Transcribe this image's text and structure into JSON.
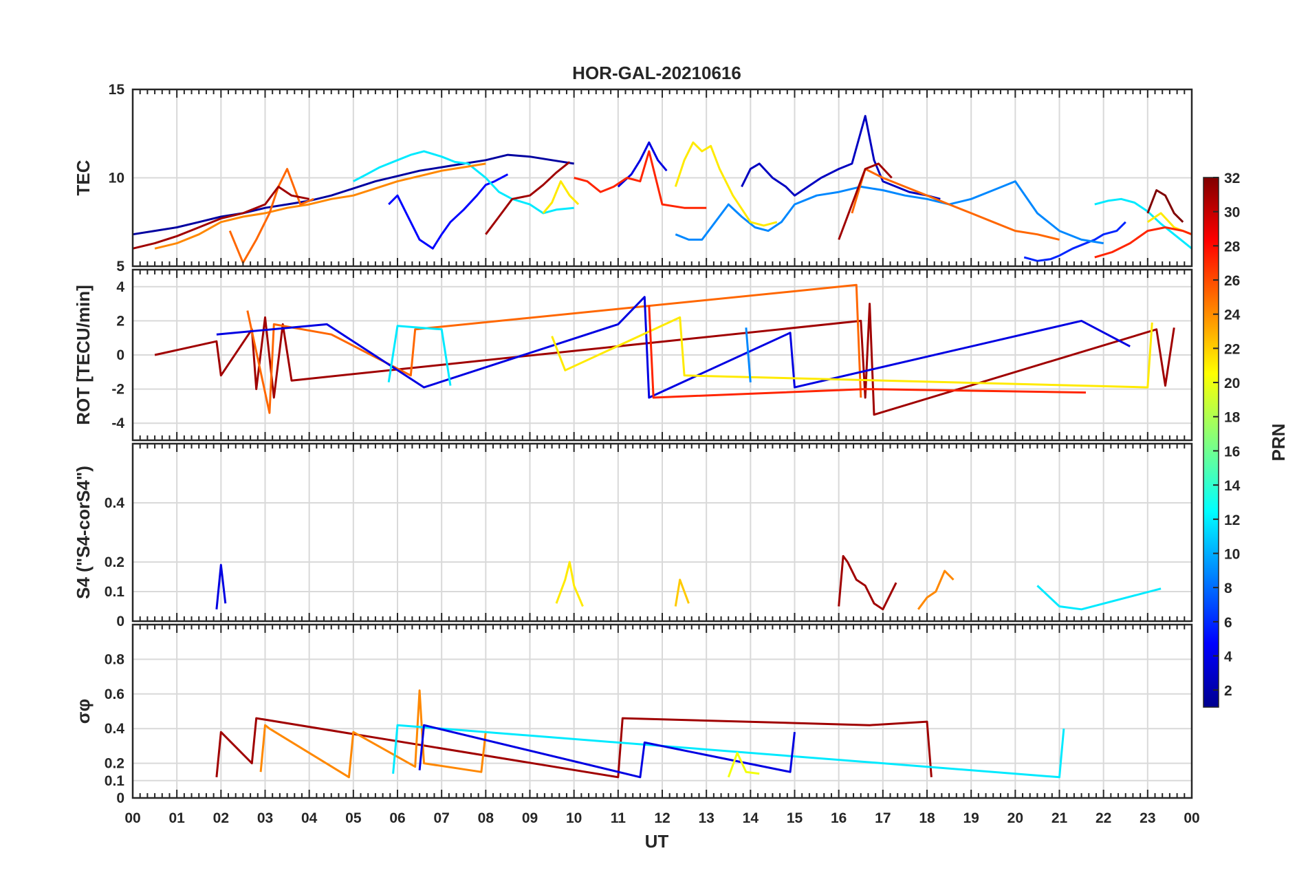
{
  "chart_data": {
    "type": "line",
    "title": "HOR-GAL-20210616",
    "xlabel": "UT",
    "x_ticks": [
      "00",
      "01",
      "02",
      "03",
      "04",
      "05",
      "06",
      "07",
      "08",
      "09",
      "10",
      "11",
      "12",
      "13",
      "14",
      "15",
      "16",
      "17",
      "18",
      "19",
      "20",
      "21",
      "22",
      "23",
      "00"
    ],
    "xlim": [
      0,
      24
    ],
    "colorbar": {
      "label": "PRN",
      "range": [
        1,
        32
      ],
      "ticks": [
        "32",
        "30",
        "28",
        "26",
        "24",
        "22",
        "20",
        "18",
        "16",
        "14",
        "12",
        "10",
        "8",
        "6",
        "4",
        "2"
      ],
      "colormap": "jet"
    },
    "panels": [
      {
        "ylabel": "TEC",
        "ylim": [
          5,
          15
        ],
        "y_ticks": [
          "15",
          "10",
          "5"
        ],
        "series": [
          {
            "name": "PRN 2",
            "prn": 2,
            "x": [
              0,
              0.5,
              1,
              1.5,
              2,
              2.5,
              3,
              3.5,
              4,
              4.5,
              5,
              5.5,
              6,
              6.5,
              7,
              7.5,
              8,
              8.5,
              9,
              9.5,
              10
            ],
            "y": [
              6.8,
              7.0,
              7.2,
              7.5,
              7.8,
              8.0,
              8.3,
              8.5,
              8.7,
              9.0,
              9.4,
              9.8,
              10.1,
              10.4,
              10.6,
              10.8,
              11.0,
              11.3,
              11.2,
              11.0,
              10.8
            ]
          },
          {
            "name": "PRN 4",
            "prn": 4,
            "x": [
              11,
              11.3,
              11.5,
              11.7,
              11.9,
              12.1
            ],
            "y": [
              9.5,
              10.2,
              11.0,
              12.0,
              11.0,
              10.4
            ]
          },
          {
            "name": "PRN 3",
            "prn": 3,
            "x": [
              13.8,
              14,
              14.2,
              14.5,
              14.8,
              15,
              15.3,
              15.6,
              16,
              16.3,
              16.6,
              16.8,
              17,
              17.3,
              17.6,
              18,
              18.3
            ],
            "y": [
              9.5,
              10.5,
              10.8,
              10.0,
              9.5,
              9.0,
              9.5,
              10.0,
              10.5,
              10.8,
              13.5,
              11.0,
              9.8,
              9.5,
              9.2,
              9.0,
              8.8
            ]
          },
          {
            "name": "PRN 5",
            "prn": 5,
            "x": [
              5.8,
              6,
              6.2,
              6.5,
              6.8,
              7,
              7.2,
              7.5,
              7.8,
              8,
              8.2,
              8.5
            ],
            "y": [
              8.5,
              9.0,
              8.0,
              6.5,
              6.0,
              6.8,
              7.5,
              8.2,
              9.0,
              9.6,
              9.8,
              10.2
            ]
          },
          {
            "name": "PRN 6",
            "prn": 6,
            "x": [
              20.2,
              20.5,
              20.8,
              21,
              21.3,
              21.5,
              21.8,
              22,
              22.3,
              22.5
            ],
            "y": [
              5.5,
              5.3,
              5.4,
              5.6,
              6.0,
              6.2,
              6.5,
              6.8,
              7.0,
              7.5
            ]
          },
          {
            "name": "PRN 9",
            "prn": 9,
            "x": [
              12.3,
              12.6,
              12.9,
              13.2,
              13.5,
              13.8,
              14.1,
              14.4,
              14.7,
              15,
              15.5,
              16,
              16.5,
              17,
              17.5,
              18,
              18.5,
              19,
              19.5,
              20,
              20.5,
              21,
              21.5,
              22
            ],
            "y": [
              6.8,
              6.5,
              6.5,
              7.5,
              8.5,
              7.8,
              7.2,
              7.0,
              7.5,
              8.5,
              9.0,
              9.2,
              9.5,
              9.3,
              9.0,
              8.8,
              8.5,
              8.8,
              9.3,
              9.8,
              8.0,
              7.0,
              6.5,
              6.3
            ]
          },
          {
            "name": "PRN 12",
            "prn": 12,
            "x": [
              5,
              5.3,
              5.6,
              6,
              6.3,
              6.6,
              7,
              7.3,
              7.6,
              8,
              8.3,
              8.6,
              9,
              9.3,
              9.6,
              10
            ],
            "y": [
              9.8,
              10.2,
              10.6,
              11.0,
              11.3,
              11.5,
              11.2,
              10.9,
              10.8,
              10.0,
              9.2,
              8.8,
              8.5,
              8.0,
              8.2,
              8.3
            ]
          },
          {
            "name": "PRN 12b",
            "prn": 12,
            "x": [
              21.8,
              22.1,
              22.4,
              22.7,
              23,
              23.3,
              23.6,
              24
            ],
            "y": [
              8.5,
              8.7,
              8.8,
              8.6,
              8.1,
              7.4,
              6.8,
              6.0
            ]
          },
          {
            "name": "PRN 21",
            "prn": 21,
            "x": [
              9.3,
              9.5,
              9.7,
              9.9,
              10.1
            ],
            "y": [
              8.0,
              8.6,
              9.8,
              9.0,
              8.5
            ]
          },
          {
            "name": "PRN 21b",
            "prn": 21,
            "x": [
              12.3,
              12.5,
              12.7,
              12.9,
              13.1,
              13.3,
              13.6,
              14,
              14.3,
              14.6
            ],
            "y": [
              9.5,
              11.0,
              12.0,
              11.5,
              11.8,
              10.5,
              9.0,
              7.5,
              7.3,
              7.5
            ]
          },
          {
            "name": "PRN 21c",
            "prn": 21,
            "x": [
              23,
              23.3,
              23.6,
              24
            ],
            "y": [
              7.5,
              8.0,
              7.2,
              6.8
            ]
          },
          {
            "name": "PRN 24",
            "prn": 24,
            "x": [
              0.5,
              1,
              1.5,
              2,
              2.5,
              3,
              3.5,
              4,
              4.5,
              5,
              5.5,
              6,
              6.5,
              7,
              7.5,
              8
            ],
            "y": [
              6.0,
              6.3,
              6.8,
              7.5,
              7.8,
              8.0,
              8.3,
              8.5,
              8.8,
              9.0,
              9.4,
              9.8,
              10.1,
              10.4,
              10.6,
              10.8
            ]
          },
          {
            "name": "PRN 25",
            "prn": 25,
            "x": [
              2.2,
              2.5,
              2.8,
              3.1,
              3.3,
              3.5,
              3.8,
              4.1
            ],
            "y": [
              7.0,
              5.2,
              6.5,
              8.0,
              9.5,
              10.5,
              8.5,
              8.8
            ]
          },
          {
            "name": "PRN 25b",
            "prn": 25,
            "x": [
              16.3,
              16.6,
              17,
              17.5,
              18,
              18.5,
              19,
              19.5,
              20,
              20.5,
              21
            ],
            "y": [
              8.0,
              10.5,
              10.0,
              9.5,
              9.0,
              8.5,
              8.0,
              7.5,
              7.0,
              6.8,
              6.5
            ]
          },
          {
            "name": "PRN 27",
            "prn": 27,
            "x": [
              10,
              10.3,
              10.6,
              10.9,
              11.2,
              11.5,
              11.7,
              12,
              12.5,
              13
            ],
            "y": [
              10.0,
              9.8,
              9.2,
              9.5,
              10.0,
              9.8,
              11.5,
              8.5,
              8.3,
              8.3
            ]
          },
          {
            "name": "PRN 27b",
            "prn": 27,
            "x": [
              21.8,
              22.2,
              22.6,
              23,
              23.4,
              23.8,
              24
            ],
            "y": [
              5.5,
              5.8,
              6.3,
              7.0,
              7.2,
              7.0,
              6.8
            ]
          },
          {
            "name": "PRN 31",
            "prn": 31,
            "x": [
              0,
              0.5,
              1,
              1.5,
              2,
              2.5,
              3,
              3.3,
              3.6,
              4
            ],
            "y": [
              6.0,
              6.3,
              6.7,
              7.2,
              7.7,
              8.0,
              8.5,
              9.5,
              9.0,
              8.8
            ]
          },
          {
            "name": "PRN 31b",
            "prn": 31,
            "x": [
              8,
              8.3,
              8.6,
              9,
              9.3,
              9.6,
              9.9
            ],
            "y": [
              6.8,
              7.8,
              8.8,
              9.0,
              9.6,
              10.3,
              10.9
            ]
          },
          {
            "name": "PRN 31c",
            "prn": 31,
            "x": [
              16,
              16.3,
              16.6,
              16.9,
              17.2
            ],
            "y": [
              6.5,
              8.5,
              10.5,
              10.8,
              10.0
            ]
          },
          {
            "name": "PRN 32",
            "prn": 32,
            "x": [
              23,
              23.2,
              23.4,
              23.6,
              23.8
            ],
            "y": [
              8.0,
              9.3,
              9.0,
              8.0,
              7.5
            ]
          }
        ]
      },
      {
        "ylabel": "ROT [TECU/min]",
        "ylim": [
          -5,
          5
        ],
        "y_ticks": [
          "4",
          "2",
          "0",
          "-2",
          "-4"
        ],
        "series": [
          {
            "name": "PRN 31",
            "prn": 31,
            "x": [
              0.5,
              1.9,
              2.0,
              2.7,
              2.8,
              3.0,
              3.2,
              3.4,
              3.6,
              16.5,
              16.6,
              16.7,
              16.8,
              23.2,
              23.4,
              23.6
            ],
            "y": [
              0,
              0.8,
              -1.2,
              1.5,
              -2.0,
              2.2,
              -2.5,
              1.8,
              -1.5,
              2.0,
              -2.5,
              3.0,
              -3.5,
              1.5,
              -1.8,
              1.6
            ]
          },
          {
            "name": "PRN 25",
            "prn": 25,
            "x": [
              2.6,
              3.1,
              3.2,
              4.5,
              6.3,
              6.4,
              16.4,
              16.5
            ],
            "y": [
              2.6,
              -3.4,
              1.8,
              1.2,
              -1.2,
              1.5,
              4.1,
              -2.5
            ]
          },
          {
            "name": "PRN 4",
            "prn": 4,
            "x": [
              1.9,
              4.4,
              6.6,
              11.0,
              11.6,
              11.7,
              14.9,
              15.0,
              21.5,
              22.6
            ],
            "y": [
              1.2,
              1.8,
              -1.9,
              1.8,
              3.4,
              -2.5,
              1.3,
              -1.9,
              2.0,
              0.5
            ]
          },
          {
            "name": "PRN 12",
            "prn": 12,
            "x": [
              5.8,
              6.0,
              7.0,
              7.2
            ],
            "y": [
              -1.6,
              1.7,
              1.5,
              -1.8
            ]
          },
          {
            "name": "PRN 21",
            "prn": 21,
            "x": [
              9.5,
              9.8,
              12.4,
              12.5,
              23.0,
              23.1
            ],
            "y": [
              1.1,
              -0.9,
              2.2,
              -1.2,
              -1.9,
              1.9
            ]
          },
          {
            "name": "PRN 27",
            "prn": 27,
            "x": [
              11.7,
              11.8,
              16.6,
              21.6
            ],
            "y": [
              2.9,
              -2.5,
              -2.0,
              -2.2
            ]
          },
          {
            "name": "PRN 9",
            "prn": 9,
            "x": [
              13.9,
              14.0
            ],
            "y": [
              1.6,
              -1.6
            ]
          }
        ]
      },
      {
        "ylabel": "S4 (\"S4-corS4\")",
        "ylim": [
          0,
          0.6
        ],
        "y_ticks": [
          "0.4",
          "0.2",
          "0.1",
          "0"
        ],
        "series": [
          {
            "name": "PRN 4",
            "prn": 4,
            "x": [
              1.9,
              2.0,
              2.1
            ],
            "y": [
              0.04,
              0.19,
              0.06
            ]
          },
          {
            "name": "PRN 21",
            "prn": 21,
            "x": [
              9.6,
              9.8,
              9.9,
              10.0,
              10.2
            ],
            "y": [
              0.06,
              0.14,
              0.2,
              0.12,
              0.05
            ]
          },
          {
            "name": "PRN 22",
            "prn": 22,
            "x": [
              12.3,
              12.4,
              12.6
            ],
            "y": [
              0.05,
              0.14,
              0.06
            ]
          },
          {
            "name": "PRN 31",
            "prn": 31,
            "x": [
              16,
              16.1,
              16.2,
              16.4,
              16.6,
              16.8,
              17,
              17.3
            ],
            "y": [
              0.05,
              0.22,
              0.2,
              0.14,
              0.12,
              0.06,
              0.04,
              0.13
            ]
          },
          {
            "name": "PRN 24",
            "prn": 24,
            "x": [
              17.8,
              18.0,
              18.2,
              18.4,
              18.6
            ],
            "y": [
              0.04,
              0.08,
              0.1,
              0.17,
              0.14
            ]
          },
          {
            "name": "PRN 12",
            "prn": 12,
            "x": [
              20.5,
              21,
              21.5,
              23.3
            ],
            "y": [
              0.12,
              0.05,
              0.04,
              0.11
            ]
          }
        ]
      },
      {
        "ylabel": "σφ",
        "ylim": [
          0,
          1
        ],
        "y_ticks": [
          "0.8",
          "0.6",
          "0.4",
          "0.2",
          "0.1",
          "0"
        ],
        "series": [
          {
            "name": "PRN 31",
            "prn": 31,
            "x": [
              1.9,
              2.0,
              2.7,
              2.8,
              11.0,
              11.1,
              16.7,
              18.0,
              18.1
            ],
            "y": [
              0.12,
              0.38,
              0.2,
              0.46,
              0.12,
              0.46,
              0.42,
              0.44,
              0.12
            ]
          },
          {
            "name": "PRN 24",
            "prn": 24,
            "x": [
              2.9,
              3.0,
              3.1,
              4.9,
              5.0,
              6.4,
              6.5,
              6.6,
              7.9,
              8.0
            ],
            "y": [
              0.15,
              0.42,
              0.4,
              0.12,
              0.38,
              0.18,
              0.62,
              0.2,
              0.15,
              0.38
            ]
          },
          {
            "name": "PRN 12",
            "prn": 12,
            "x": [
              5.9,
              6.0,
              21.0,
              21.1
            ],
            "y": [
              0.14,
              0.42,
              0.12,
              0.4
            ]
          },
          {
            "name": "PRN 4",
            "prn": 4,
            "x": [
              6.5,
              6.6,
              11.5,
              11.6,
              14.9,
              15.0
            ],
            "y": [
              0.16,
              0.42,
              0.12,
              0.32,
              0.15,
              0.38
            ]
          },
          {
            "name": "PRN 20",
            "prn": 20,
            "x": [
              13.5,
              13.7,
              13.9,
              14.2
            ],
            "y": [
              0.12,
              0.26,
              0.15,
              0.14
            ]
          }
        ]
      }
    ]
  }
}
